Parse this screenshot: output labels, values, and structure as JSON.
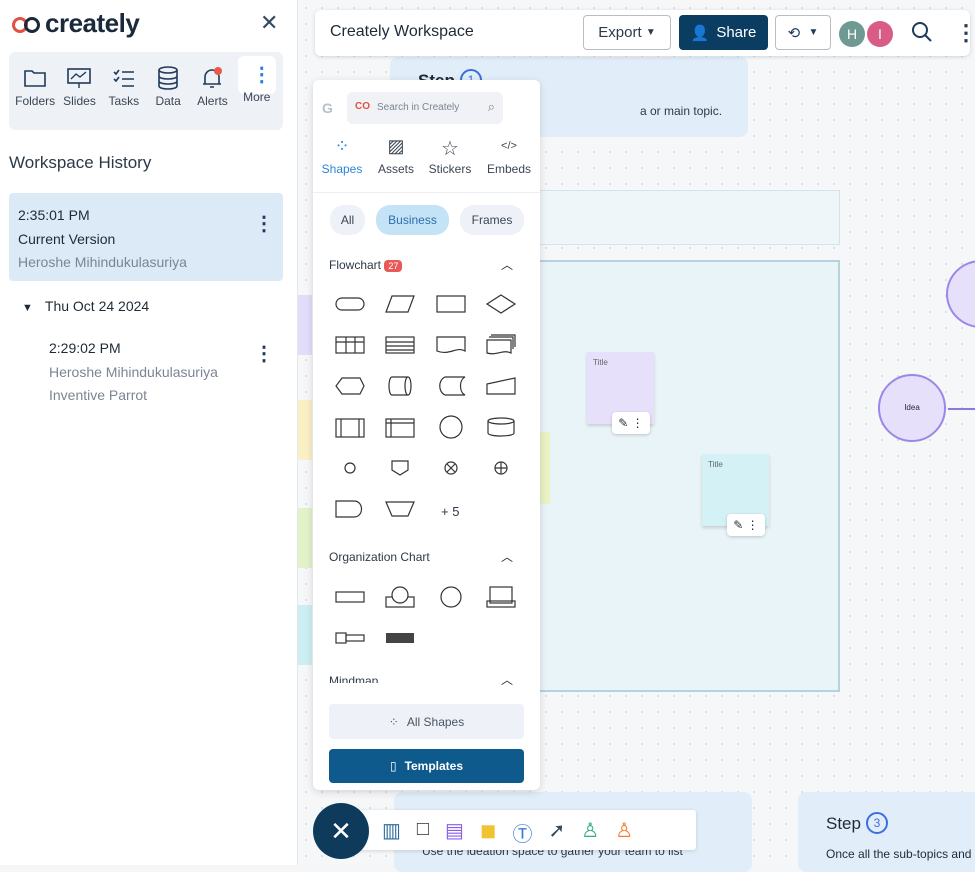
{
  "sidebar": {
    "logo": "creately",
    "toolbar": [
      {
        "label": "Folders"
      },
      {
        "label": "Slides"
      },
      {
        "label": "Tasks"
      },
      {
        "label": "Data"
      },
      {
        "label": "Alerts"
      },
      {
        "label": "More"
      }
    ],
    "history_title": "Workspace History",
    "current": {
      "time": "2:35:01 PM",
      "label": "Current Version",
      "author": "Heroshe Mihindukulasuriya"
    },
    "group": {
      "date": "Thu Oct 24 2024",
      "time": "2:29:02 PM",
      "author": "Heroshe Mihindukulasuriya",
      "name": "Inventive Parrot"
    }
  },
  "header": {
    "title": "Creately Workspace",
    "export": "Export",
    "share": "Share",
    "avatars": [
      {
        "initial": "H",
        "color": "#6f9a94"
      },
      {
        "initial": "I",
        "color": "#d95c86"
      }
    ]
  },
  "panel": {
    "search_placeholder": "Search in Creately",
    "tabs": [
      {
        "label": "Shapes"
      },
      {
        "label": "Assets"
      },
      {
        "label": "Stickers"
      },
      {
        "label": "Embeds"
      }
    ],
    "chips": [
      {
        "label": "All"
      },
      {
        "label": "Business"
      },
      {
        "label": "Frames"
      }
    ],
    "flowchart": {
      "title": "Flowchart",
      "count": "27",
      "more": "+ 5"
    },
    "org": {
      "title": "Organization Chart"
    },
    "mindmap": {
      "title": "Mindmap"
    },
    "all_shapes": "All Shapes",
    "templates": "Templates"
  },
  "canvas": {
    "step1": {
      "title": "Step",
      "num": "1",
      "text": "a or main topic."
    },
    "step3": {
      "title": "Step",
      "num": "3",
      "text": "Once all the sub-topics and"
    },
    "step2_text": "Use the ideation space to gather your team to list",
    "sticky_title": "Title",
    "idea": "Idea"
  },
  "colors": {
    "accent": "#0e3a5b",
    "share": "#0b3d63",
    "templates": "#0f5a8c"
  }
}
